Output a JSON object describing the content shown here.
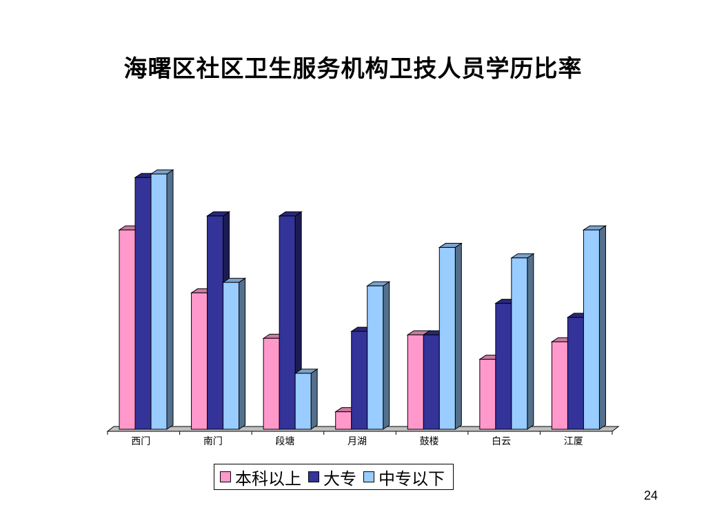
{
  "slide": {
    "title": "海曙区社区卫生服务机构卫技人员学历比率",
    "page_number": "24"
  },
  "chart_data": {
    "type": "bar",
    "title": "海曙区社区卫生服务机构卫技人员学历比率",
    "categories": [
      "西门",
      "南门",
      "段塘",
      "月湖",
      "鼓楼",
      "白云",
      "江厦"
    ],
    "series": [
      {
        "name": "本科以上",
        "color": "#FF99CC",
        "values": [
          57,
          39,
          26,
          5,
          27,
          20,
          25
        ]
      },
      {
        "name": "大专",
        "color": "#333399",
        "values": [
          72,
          61,
          61,
          28,
          27,
          36,
          32
        ]
      },
      {
        "name": "中专以下",
        "color": "#99CCFF",
        "values": [
          73,
          42,
          16,
          41,
          52,
          49,
          57
        ]
      }
    ],
    "xlabel": "",
    "ylabel": "",
    "ylim": [
      0,
      75
    ],
    "grid": false,
    "three_d": true,
    "legend": "bottom"
  }
}
